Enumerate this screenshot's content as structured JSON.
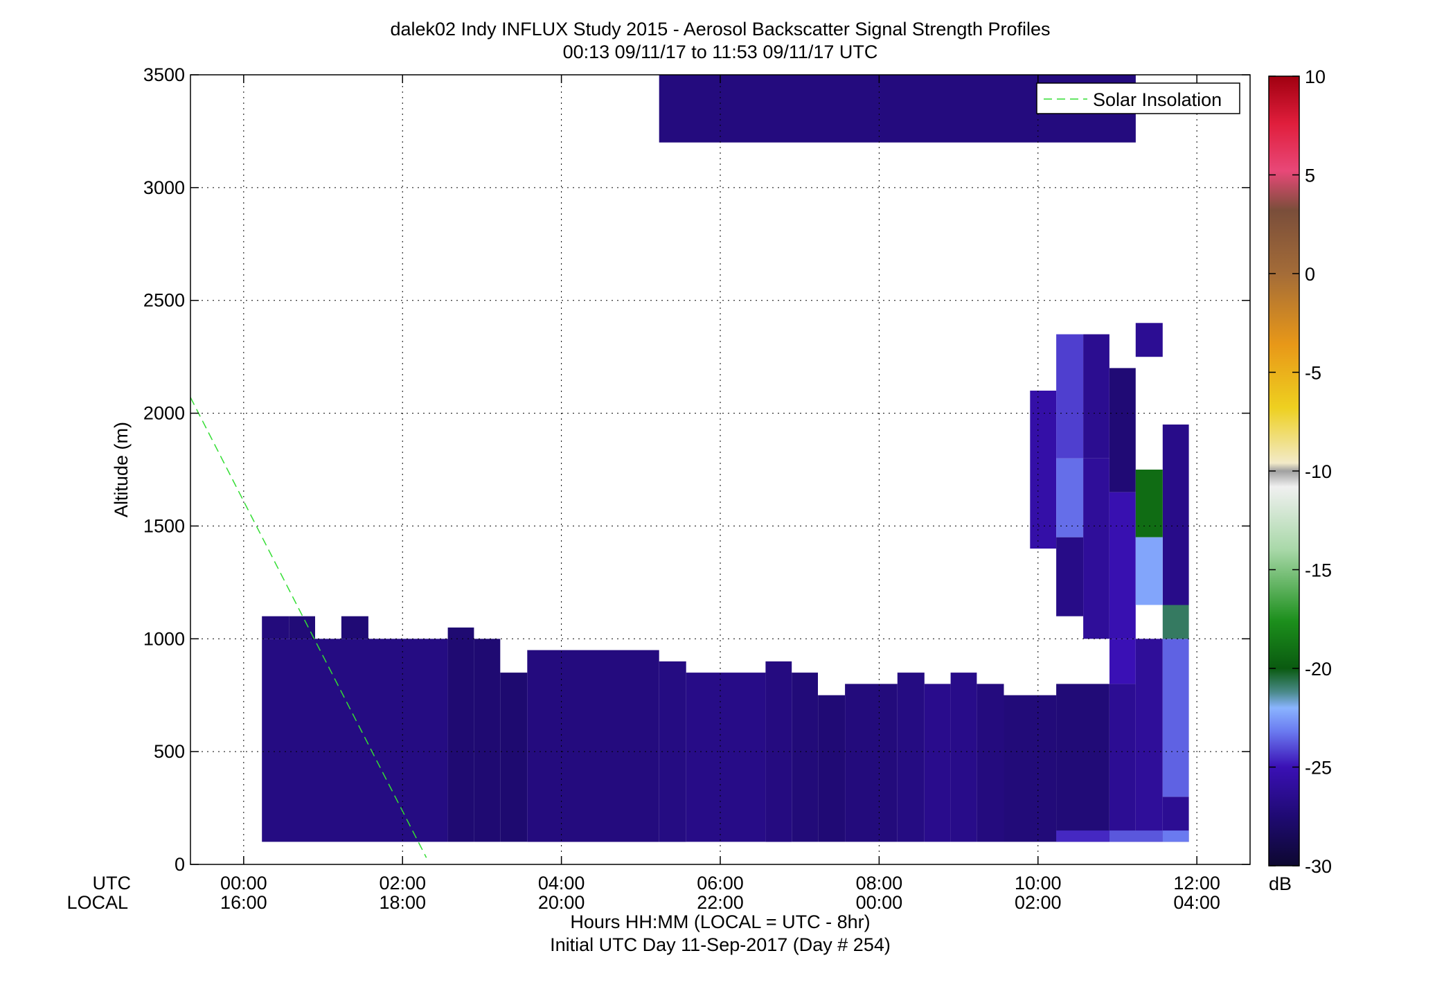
{
  "chart_data": {
    "type": "heatmap",
    "title": "dalek02 Indy INFLUX Study 2015 - Aerosol Backscatter Signal Strength Profiles",
    "subtitle": "00:13 09/11/17 to 11:53 09/11/17  UTC",
    "ylabel": "Altitude (m)",
    "xlabel": "Hours HH:MM  (LOCAL = UTC - 8hr)",
    "xlabel2": "Initial UTC Day 11-Sep-2017 (Day # 254)",
    "row_labels": [
      "UTC",
      "LOCAL"
    ],
    "xlim": [
      -0.67,
      12.67
    ],
    "ylim": [
      0,
      3500
    ],
    "grid": true,
    "x_ticks": [
      {
        "x": 0,
        "utc": "00:00",
        "local": "16:00"
      },
      {
        "x": 2,
        "utc": "02:00",
        "local": "18:00"
      },
      {
        "x": 4,
        "utc": "04:00",
        "local": "20:00"
      },
      {
        "x": 6,
        "utc": "06:00",
        "local": "22:00"
      },
      {
        "x": 8,
        "utc": "08:00",
        "local": "00:00"
      },
      {
        "x": 10,
        "utc": "10:00",
        "local": "02:00"
      },
      {
        "x": 12,
        "utc": "12:00",
        "local": "04:00"
      }
    ],
    "y_ticks": [
      "0",
      "500",
      "1000",
      "1500",
      "2000",
      "2500",
      "3000",
      "3500"
    ],
    "legend": {
      "placement": "top-right",
      "entries": [
        "Solar Insolation"
      ]
    },
    "solar_insolation_line": {
      "color": "#33dd33",
      "points": [
        [
          -0.67,
          2070
        ],
        [
          2.3,
          30
        ]
      ]
    },
    "colorbar": {
      "label": "dB",
      "min": -30,
      "max": 10,
      "ticks": [
        "-30",
        "-25",
        "-20",
        "-15",
        "-10",
        "-5",
        "0",
        "5",
        "10"
      ]
    },
    "cell_time_width_hours": 0.333,
    "cells": [
      {
        "t0": 0.23,
        "t1": 2.57,
        "alt0": 100,
        "alt1": 1000,
        "db": -27.2
      },
      {
        "t0": 0.23,
        "t1": 0.57,
        "alt0": 1000,
        "alt1": 1100,
        "db": -27.5
      },
      {
        "t0": 0.57,
        "t1": 0.9,
        "alt0": 1000,
        "alt1": 1100,
        "db": -27.7
      },
      {
        "t0": 1.23,
        "t1": 1.57,
        "alt0": 1000,
        "alt1": 1100,
        "db": -27.8
      },
      {
        "t0": 2.57,
        "t1": 2.9,
        "alt0": 100,
        "alt1": 1050,
        "db": -27.9
      },
      {
        "t0": 2.9,
        "t1": 3.23,
        "alt0": 100,
        "alt1": 1000,
        "db": -27.9
      },
      {
        "t0": 3.23,
        "t1": 3.57,
        "alt0": 100,
        "alt1": 850,
        "db": -28.0
      },
      {
        "t0": 3.57,
        "t1": 5.23,
        "alt0": 100,
        "alt1": 950,
        "db": -27.4
      },
      {
        "t0": 5.23,
        "t1": 5.57,
        "alt0": 100,
        "alt1": 900,
        "db": -27.2
      },
      {
        "t0": 5.57,
        "t1": 6.57,
        "alt0": 100,
        "alt1": 850,
        "db": -27.0
      },
      {
        "t0": 6.57,
        "t1": 6.9,
        "alt0": 100,
        "alt1": 900,
        "db": -27.3
      },
      {
        "t0": 6.9,
        "t1": 7.23,
        "alt0": 100,
        "alt1": 850,
        "db": -27.6
      },
      {
        "t0": 7.23,
        "t1": 7.57,
        "alt0": 100,
        "alt1": 750,
        "db": -27.8
      },
      {
        "t0": 7.57,
        "t1": 8.23,
        "alt0": 100,
        "alt1": 800,
        "db": -27.5
      },
      {
        "t0": 8.23,
        "t1": 8.57,
        "alt0": 100,
        "alt1": 850,
        "db": -27.2
      },
      {
        "t0": 8.57,
        "t1": 8.9,
        "alt0": 100,
        "alt1": 800,
        "db": -26.8
      },
      {
        "t0": 8.9,
        "t1": 9.23,
        "alt0": 100,
        "alt1": 850,
        "db": -26.9
      },
      {
        "t0": 9.23,
        "t1": 9.57,
        "alt0": 100,
        "alt1": 800,
        "db": -27.4
      },
      {
        "t0": 9.57,
        "t1": 10.23,
        "alt0": 100,
        "alt1": 750,
        "db": -27.6
      },
      {
        "t0": 10.23,
        "t1": 10.9,
        "alt0": 100,
        "alt1": 800,
        "db": -27.7
      },
      {
        "t0": 10.9,
        "t1": 11.23,
        "alt0": 100,
        "alt1": 800,
        "db": -26.5
      },
      {
        "t0": 10.9,
        "t1": 11.23,
        "alt0": 800,
        "alt1": 1000,
        "db": -25.0
      },
      {
        "t0": 11.23,
        "t1": 11.57,
        "alt0": 100,
        "alt1": 1000,
        "db": -26.2
      },
      {
        "t0": 11.57,
        "t1": 11.9,
        "alt0": 100,
        "alt1": 300,
        "db": -26.5
      },
      {
        "t0": 11.57,
        "t1": 11.9,
        "alt0": 300,
        "alt1": 1000,
        "db": -23.6
      },
      {
        "t0": 11.57,
        "t1": 11.9,
        "alt0": 1000,
        "alt1": 1150,
        "db": -20.8
      },
      {
        "t0": 11.57,
        "t1": 11.9,
        "alt0": 1150,
        "alt1": 1950,
        "db": -26.9
      },
      {
        "t0": 10.23,
        "t1": 10.9,
        "alt0": 100,
        "alt1": 150,
        "db": -24.6
      },
      {
        "t0": 10.9,
        "t1": 11.57,
        "alt0": 100,
        "alt1": 150,
        "db": -23.8
      },
      {
        "t0": 11.57,
        "t1": 11.9,
        "alt0": 100,
        "alt1": 150,
        "db": -23.2
      },
      {
        "t0": 9.9,
        "t1": 10.23,
        "alt0": 1400,
        "alt1": 2100,
        "db": -25.6
      },
      {
        "t0": 10.23,
        "t1": 10.57,
        "alt0": 1450,
        "alt1": 1800,
        "db": -23.4
      },
      {
        "t0": 10.23,
        "t1": 10.57,
        "alt0": 1800,
        "alt1": 2350,
        "db": -24.2
      },
      {
        "t0": 10.23,
        "t1": 10.57,
        "alt0": 1100,
        "alt1": 1450,
        "db": -27.0
      },
      {
        "t0": 10.57,
        "t1": 10.9,
        "alt0": 1000,
        "alt1": 1800,
        "db": -26.2
      },
      {
        "t0": 10.57,
        "t1": 10.9,
        "alt0": 1800,
        "alt1": 2350,
        "db": -26.6
      },
      {
        "t0": 10.9,
        "t1": 11.23,
        "alt0": 1000,
        "alt1": 1650,
        "db": -25.2
      },
      {
        "t0": 10.9,
        "t1": 11.23,
        "alt0": 1650,
        "alt1": 2200,
        "db": -27.8
      },
      {
        "t0": 11.23,
        "t1": 11.57,
        "alt0": 1450,
        "alt1": 1750,
        "db": -19.2
      },
      {
        "t0": 11.23,
        "t1": 11.57,
        "alt0": 1150,
        "alt1": 1450,
        "db": -22.3
      },
      {
        "t0": 11.23,
        "t1": 11.57,
        "alt0": 2250,
        "alt1": 2400,
        "db": -26.5
      },
      {
        "t0": 5.23,
        "t1": 11.23,
        "alt0": 3200,
        "alt1": 3500,
        "db": -27.4
      }
    ]
  }
}
